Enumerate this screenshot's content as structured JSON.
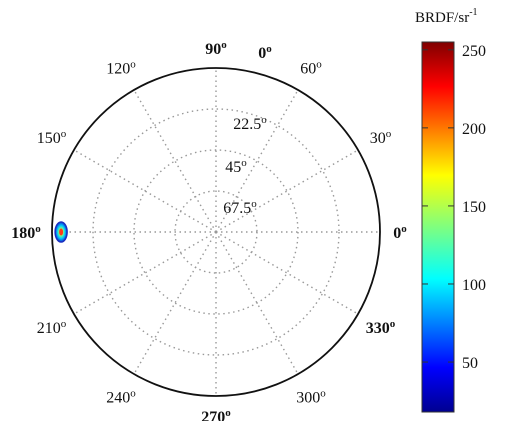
{
  "chart_data": {
    "type": "heatmap",
    "projection": "polar",
    "title": "",
    "colorbar": {
      "label_main": "BRDF/sr",
      "label_sup": "-1",
      "ticks": [
        "250",
        "200",
        "150",
        "100",
        "50"
      ],
      "tick_values": [
        250,
        200,
        150,
        100,
        50
      ],
      "range": [
        18,
        255
      ],
      "colormap": "jet"
    },
    "angular_ticks": [
      {
        "deg": 90,
        "label": "90",
        "sup": "o",
        "bold": true
      },
      {
        "deg": 60,
        "label": "60",
        "sup": "o",
        "bold": false
      },
      {
        "deg": 30,
        "label": "30",
        "sup": "o",
        "bold": false
      },
      {
        "deg": 0,
        "label": "0",
        "sup": "o",
        "bold": true
      },
      {
        "deg": 330,
        "label": "330",
        "sup": "o",
        "bold": true
      },
      {
        "deg": 300,
        "label": "300",
        "sup": "o",
        "bold": false
      },
      {
        "deg": 270,
        "label": "270",
        "sup": "o",
        "bold": true
      },
      {
        "deg": 240,
        "label": "240",
        "sup": "o",
        "bold": false
      },
      {
        "deg": 210,
        "label": "210",
        "sup": "o",
        "bold": false
      },
      {
        "deg": 180,
        "label": "180",
        "sup": "o",
        "bold": true
      },
      {
        "deg": 150,
        "label": "150",
        "sup": "o",
        "bold": false
      },
      {
        "deg": 120,
        "label": "120",
        "sup": "o",
        "bold": false
      }
    ],
    "radial_ticks": [
      {
        "value": 22.5,
        "label": "22.5",
        "sup": "o"
      },
      {
        "value": 45,
        "label": "45",
        "sup": "o"
      },
      {
        "value": 67.5,
        "label": "67.5",
        "sup": "o"
      }
    ],
    "zenith_label": {
      "label": "0",
      "sup": "o"
    },
    "radial_axis": {
      "outer": 0,
      "center": 90,
      "unit": "deg"
    },
    "hotspot": {
      "azimuth_deg": 180,
      "elevation_deg": 5,
      "peak_value": 170
    }
  }
}
